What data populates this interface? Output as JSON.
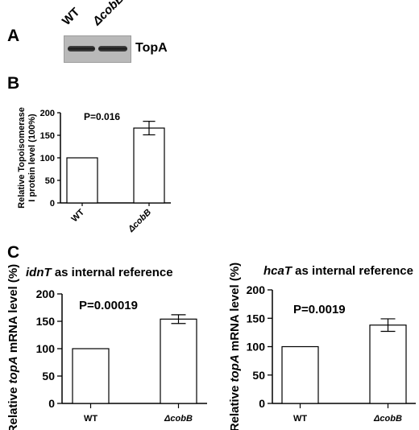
{
  "panels": {
    "A": "A",
    "B": "B",
    "C": "C"
  },
  "blot": {
    "lanes": [
      "WT",
      "ΔcobB"
    ],
    "protein": "TopA"
  },
  "chart_data": [
    {
      "id": "B",
      "type": "bar",
      "categories": [
        "WT",
        "ΔcobB"
      ],
      "values": [
        100,
        166
      ],
      "errors": [
        0,
        15
      ],
      "ylabel_lines": [
        "Relative Topoisomerase",
        "I protein level (100%)"
      ],
      "yticks": [
        0,
        50,
        100,
        150,
        200
      ],
      "ylim": [
        0,
        200
      ],
      "annotation": "P=0.016",
      "title": ""
    },
    {
      "id": "C-left",
      "type": "bar",
      "categories": [
        "WT",
        "ΔcobB"
      ],
      "values": [
        100,
        154
      ],
      "errors": [
        0,
        8
      ],
      "title_italic": "idnT",
      "title_rest": " as internal reference",
      "ylabel_pre": "Relative ",
      "ylabel_italic": "topA",
      "ylabel_post": " mRNA level (%)",
      "yticks": [
        0,
        50,
        100,
        150,
        200
      ],
      "ylim": [
        0,
        200
      ],
      "annotation": "P=0.00019"
    },
    {
      "id": "C-right",
      "type": "bar",
      "categories": [
        "WT",
        "ΔcobB"
      ],
      "values": [
        100,
        138
      ],
      "errors": [
        0,
        11
      ],
      "title_italic": "hcaT",
      "title_rest": " as internal reference",
      "ylabel_pre": "Relative ",
      "ylabel_italic": "topA",
      "ylabel_post": " mRNA level (%)",
      "yticks": [
        0,
        50,
        100,
        150,
        200
      ],
      "ylim": [
        0,
        200
      ],
      "annotation": "P=0.0019"
    }
  ]
}
